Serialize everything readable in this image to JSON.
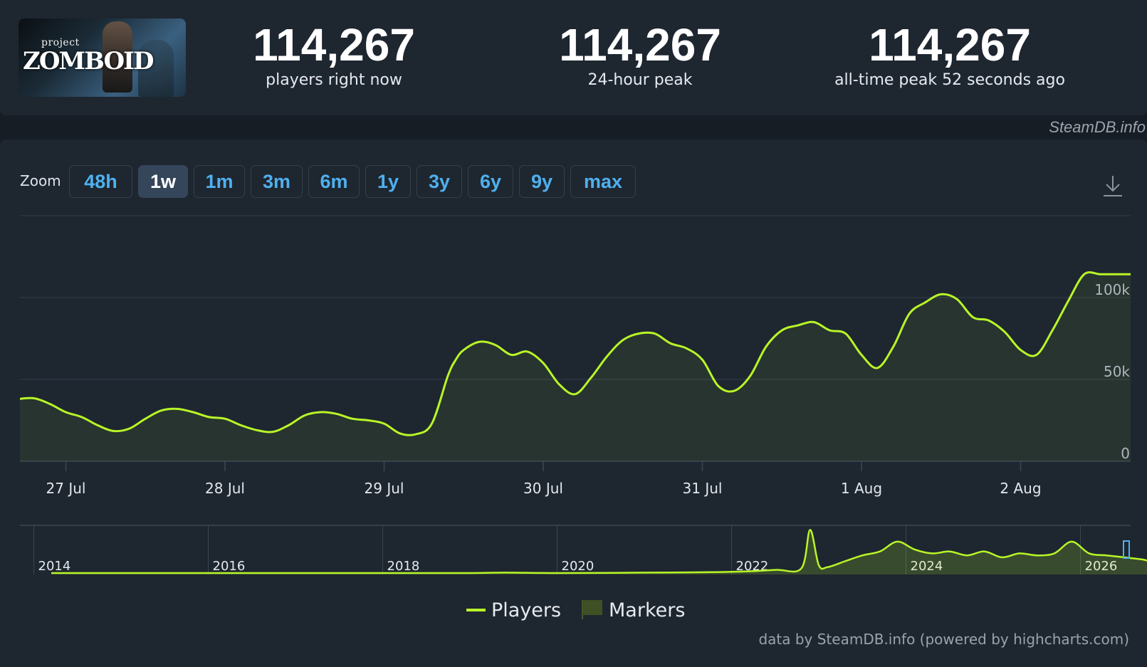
{
  "header": {
    "logo_small": "project",
    "logo_big": "ZOMBOID",
    "stats": [
      {
        "value": "114,267",
        "label": "players right now"
      },
      {
        "value": "114,267",
        "label": "24-hour peak"
      },
      {
        "value": "114,267",
        "label": "all-time peak 52 seconds ago"
      }
    ]
  },
  "brand": "SteamDB.info",
  "zoom": {
    "label": "Zoom",
    "buttons": [
      "48h",
      "1w",
      "1m",
      "3m",
      "6m",
      "1y",
      "3y",
      "6y",
      "9y",
      "max"
    ],
    "active": "1w"
  },
  "chart_data": {
    "type": "line",
    "title": "",
    "xlabel": "",
    "ylabel": "",
    "ylim": [
      0,
      100000
    ],
    "y_tick_labels": [
      "0",
      "50k",
      "100k"
    ],
    "x_tick_labels": [
      "27 Jul",
      "28 Jul",
      "29 Jul",
      "30 Jul",
      "31 Jul",
      "1 Aug",
      "2 Aug"
    ],
    "x_start_label": "27 Jul",
    "grid": true,
    "legend_position": "bottom-center",
    "series": [
      {
        "name": "Players",
        "color": "#b8f527",
        "x_days": [
          -0.3,
          -0.2,
          -0.1,
          0.0,
          0.1,
          0.2,
          0.3,
          0.4,
          0.5,
          0.6,
          0.7,
          0.8,
          0.9,
          1.0,
          1.1,
          1.2,
          1.3,
          1.4,
          1.5,
          1.6,
          1.7,
          1.8,
          1.9,
          2.0,
          2.1,
          2.2,
          2.3,
          2.4,
          2.45,
          2.5,
          2.6,
          2.7,
          2.8,
          2.9,
          3.0,
          3.1,
          3.2,
          3.3,
          3.4,
          3.5,
          3.6,
          3.7,
          3.8,
          3.9,
          4.0,
          4.1,
          4.2,
          4.3,
          4.4,
          4.5,
          4.6,
          4.7,
          4.8,
          4.9,
          5.0,
          5.1,
          5.2,
          5.3,
          5.4,
          5.5,
          5.6,
          5.7,
          5.8,
          5.9,
          6.0,
          6.1,
          6.2,
          6.3,
          6.4,
          6.5,
          6.6,
          6.7
        ],
        "values": [
          38000,
          38500,
          35000,
          30000,
          27000,
          22000,
          18500,
          20000,
          26000,
          31000,
          32000,
          30000,
          27000,
          26000,
          22000,
          19000,
          18000,
          22000,
          28000,
          30000,
          29000,
          26000,
          25000,
          23000,
          17000,
          16500,
          23000,
          52000,
          62000,
          68000,
          73000,
          71000,
          65000,
          67000,
          60000,
          47000,
          41000,
          51000,
          64000,
          74000,
          78000,
          78000,
          72000,
          69000,
          62000,
          46000,
          43000,
          52000,
          70000,
          80000,
          83000,
          85000,
          80000,
          78000,
          65000,
          57000,
          70000,
          90000,
          97000,
          102000,
          99000,
          88000,
          86000,
          79000,
          68000,
          65000,
          80000,
          98000,
          114267,
          114267,
          114267,
          114267
        ]
      }
    ],
    "navigator": {
      "x_tick_labels": [
        "2014",
        "2016",
        "2018",
        "2020",
        "2022",
        "2024",
        "2026"
      ],
      "years": [
        2013.2,
        2014,
        2015,
        2016,
        2017,
        2018,
        2018.4,
        2019,
        2020,
        2021,
        2021.5,
        2021.8,
        2021.9,
        2022.0,
        2022.1,
        2022.3,
        2022.5,
        2022.7,
        2022.9,
        2023.1,
        2023.3,
        2023.5,
        2023.7,
        2023.9,
        2024.1,
        2024.3,
        2024.5,
        2024.7,
        2024.9,
        2025.1,
        2025.3,
        2025.5,
        2025.7,
        2025.9,
        2026.1,
        2026.3,
        2026.5
      ],
      "values": [
        0,
        0,
        0,
        0,
        0,
        0,
        1000,
        0,
        1000,
        3000,
        8000,
        12000,
        110000,
        20000,
        15000,
        30000,
        45000,
        55000,
        80000,
        60000,
        50000,
        55000,
        45000,
        55000,
        40000,
        50000,
        45000,
        50000,
        80000,
        50000,
        45000,
        40000,
        35000,
        30000,
        70000,
        35000,
        40000
      ]
    }
  },
  "legend": {
    "players": "Players",
    "markers": "Markers"
  },
  "credits": "data by SteamDB.info (powered by highcharts.com)"
}
